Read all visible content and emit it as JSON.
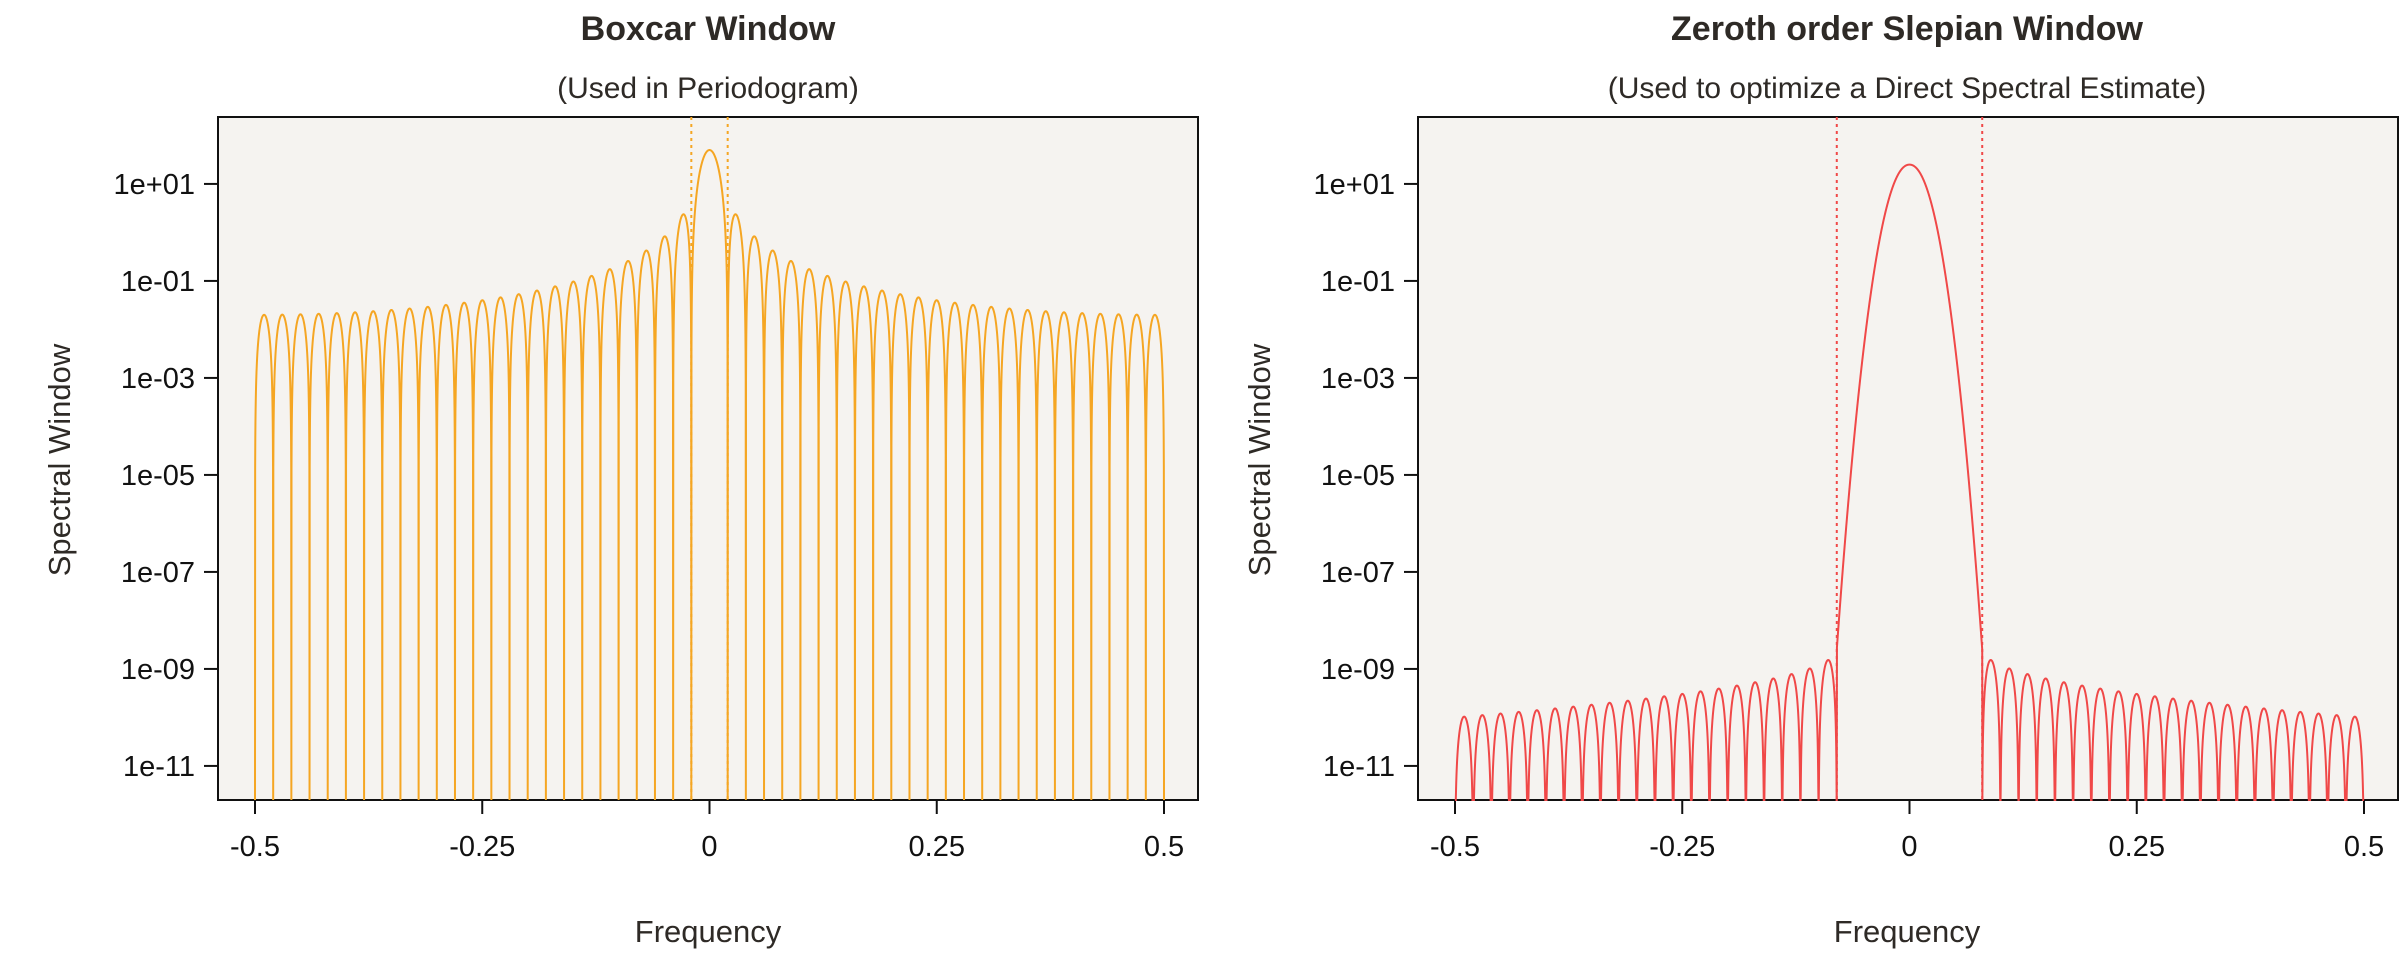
{
  "chart_data": [
    {
      "type": "line",
      "title": "Boxcar Window",
      "subtitle": "(Used in Periodogram)",
      "xlabel": "Frequency",
      "ylabel": "Spectral Window",
      "xlim": [
        -0.5,
        0.5
      ],
      "xticks": [
        -0.5,
        -0.25,
        0,
        0.25,
        0.5
      ],
      "xtick_labels": [
        "-0.5",
        "-0.25",
        "0",
        "0.25",
        "0.5"
      ],
      "yscale": "log",
      "ylim": [
        2e-12,
        300
      ],
      "yticks": [
        10.0,
        0.1,
        0.001,
        1e-05,
        1e-07,
        1e-09,
        1e-11
      ],
      "ytick_labels": [
        "1e+01",
        "1e-01",
        "1e-03",
        "1e-05",
        "1e-07",
        "1e-09",
        "1e-11"
      ],
      "grid": false,
      "color": "#f5a623",
      "window": "boxcar",
      "window_length": 50,
      "bandwidth_lines": [
        -0.02,
        0.02
      ],
      "peak_value": 50
    },
    {
      "type": "line",
      "title": "Zeroth order Slepian Window",
      "subtitle": "(Used to optimize a Direct Spectral Estimate)",
      "xlabel": "Frequency",
      "ylabel": "Spectral Window",
      "xlim": [
        -0.5,
        0.5
      ],
      "xticks": [
        -0.5,
        -0.25,
        0,
        0.25,
        0.5
      ],
      "xtick_labels": [
        "-0.5",
        "-0.25",
        "0",
        "0.25",
        "0.5"
      ],
      "yscale": "log",
      "ylim": [
        2e-12,
        300
      ],
      "yticks": [
        10.0,
        0.1,
        0.001,
        1e-05,
        1e-07,
        1e-09,
        1e-11
      ],
      "ytick_labels": [
        "1e+01",
        "1e-01",
        "1e-03",
        "1e-05",
        "1e-07",
        "1e-09",
        "1e-11"
      ],
      "grid": false,
      "color": "#f04848",
      "window": "slepian",
      "window_length": 50,
      "bandwidth_lines": [
        -0.08,
        0.08
      ],
      "peak_value": 25
    }
  ]
}
